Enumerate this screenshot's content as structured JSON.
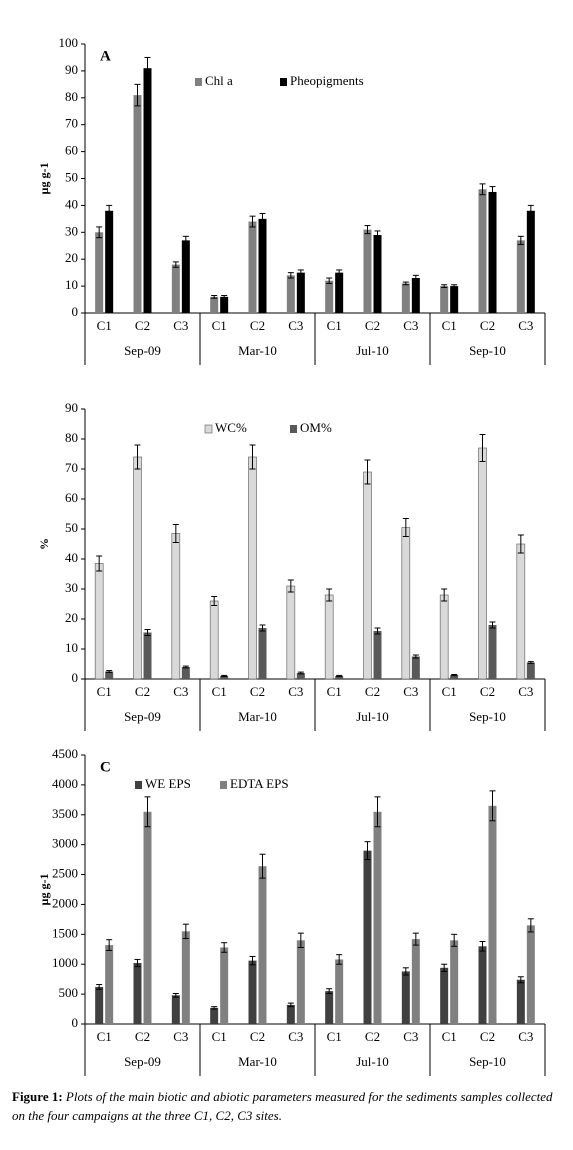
{
  "chart_data": [
    {
      "type": "bar",
      "panel_label": "A",
      "ylabel": "µg g-1",
      "categories": [
        "C1",
        "C2",
        "C3",
        "C1",
        "C2",
        "C3",
        "C1",
        "C2",
        "C3",
        "C1",
        "C2",
        "C3"
      ],
      "groups": [
        "Sep-09",
        "Mar-10",
        "Jul-10",
        "Sep-10"
      ],
      "ylim": [
        0,
        100
      ],
      "yticks": [
        0,
        10,
        20,
        30,
        40,
        50,
        60,
        70,
        80,
        90,
        100
      ],
      "series": [
        {
          "name": "Chl a",
          "color": "#808080",
          "values": [
            30,
            81,
            18,
            6,
            34,
            14,
            12,
            31,
            11,
            10,
            46,
            27
          ],
          "errors": [
            2,
            4,
            1,
            0.5,
            2,
            1,
            1,
            1.5,
            0.5,
            0.5,
            2,
            1.5
          ]
        },
        {
          "name": "Pheopigments",
          "color": "#000000",
          "values": [
            38,
            91,
            27,
            6,
            35,
            15,
            15,
            29,
            13,
            10,
            45,
            38
          ],
          "errors": [
            2,
            4,
            1.5,
            0.5,
            2,
            1,
            1,
            1.5,
            1,
            0.5,
            2,
            2
          ]
        }
      ]
    },
    {
      "type": "bar",
      "ylabel": "%",
      "categories": [
        "C1",
        "C2",
        "C3",
        "C1",
        "C2",
        "C3",
        "C1",
        "C2",
        "C3",
        "C1",
        "C2",
        "C3"
      ],
      "groups": [
        "Sep-09",
        "Mar-10",
        "Jul-10",
        "Sep-10"
      ],
      "ylim": [
        0,
        90
      ],
      "yticks": [
        0,
        10,
        20,
        30,
        40,
        50,
        60,
        70,
        80,
        90
      ],
      "series": [
        {
          "name": "WC%",
          "color": "#d9d9d9",
          "values": [
            38.5,
            74,
            48.5,
            26,
            74,
            31,
            28,
            69,
            50.5,
            28,
            77,
            45
          ],
          "errors": [
            2.5,
            4,
            3,
            1.5,
            4,
            2,
            2,
            4,
            3,
            2,
            4.5,
            3
          ]
        },
        {
          "name": "OM%",
          "color": "#595959",
          "values": [
            2.5,
            15.5,
            4,
            1,
            17,
            2,
            1,
            16,
            7.5,
            1.3,
            18,
            5.5
          ],
          "errors": [
            0.3,
            1,
            0.3,
            0.2,
            1,
            0.3,
            0.2,
            1,
            0.5,
            0.2,
            1,
            0.3
          ]
        }
      ]
    },
    {
      "type": "bar",
      "panel_label": "C",
      "ylabel": "µg g-1",
      "categories": [
        "C1",
        "C2",
        "C3",
        "C1",
        "C2",
        "C3",
        "C1",
        "C2",
        "C3",
        "C1",
        "C2",
        "C3"
      ],
      "groups": [
        "Sep-09",
        "Mar-10",
        "Jul-10",
        "Sep-10"
      ],
      "ylim": [
        0,
        4500
      ],
      "yticks": [
        0,
        500,
        1000,
        1500,
        2000,
        2500,
        3000,
        3500,
        4000,
        4500
      ],
      "series": [
        {
          "name": "WE EPS",
          "color": "#404040",
          "values": [
            620,
            1020,
            480,
            270,
            1060,
            320,
            550,
            2900,
            880,
            940,
            1300,
            740
          ],
          "errors": [
            40,
            60,
            30,
            20,
            70,
            30,
            40,
            150,
            60,
            60,
            80,
            50
          ]
        },
        {
          "name": "EDTA EPS",
          "color": "#808080",
          "values": [
            1320,
            3550,
            1550,
            1280,
            2640,
            1400,
            1080,
            3550,
            1420,
            1400,
            3650,
            1650
          ],
          "errors": [
            90,
            250,
            120,
            80,
            200,
            120,
            80,
            250,
            100,
            100,
            250,
            110
          ]
        }
      ]
    }
  ],
  "figure_label": "Figure 1:",
  "caption": "Plots of the main biotic and abiotic parameters measured for the sediments samples collected on the four campaigns at the three C1, C2, C3 sites."
}
